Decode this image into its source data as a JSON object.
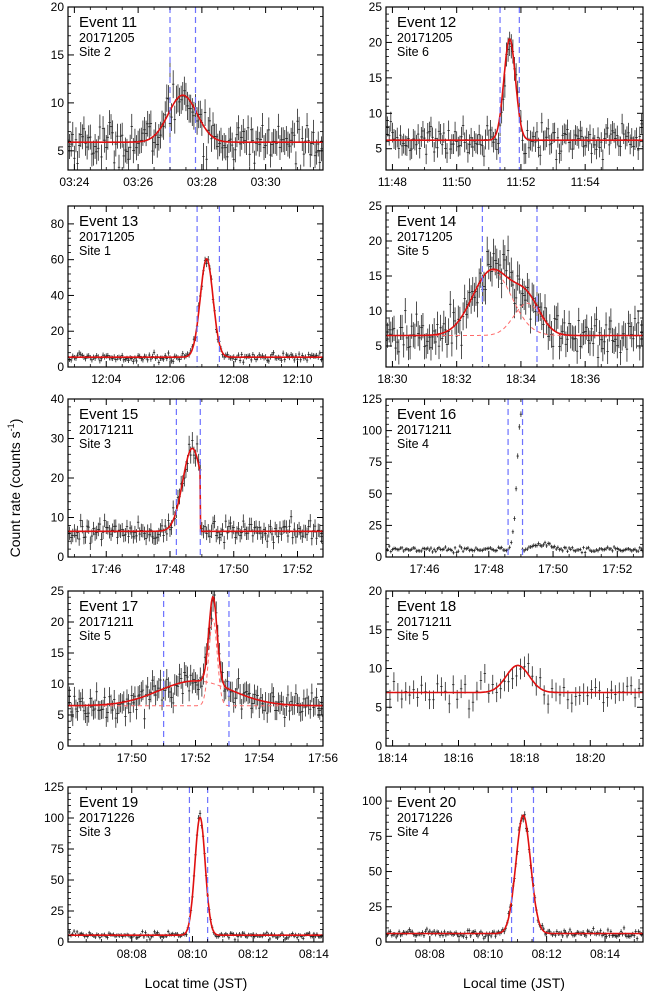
{
  "figure": {
    "ylabel_main": "Count rate (counts s",
    "ylabel_sup": "-1",
    "ylabel_close": ")",
    "xlabel_left": "Locat time (JST)",
    "xlabel_right": "Local time (JST)"
  },
  "chart_data": [
    {
      "type": "scatter",
      "event": "Event 11",
      "date": "20171205",
      "site": "Site 2",
      "ylim": [
        3,
        20
      ],
      "yticks": [
        5,
        10,
        15,
        20
      ],
      "xlim": [
        203.8,
        211.8
      ],
      "xticks": [
        204,
        206,
        208,
        210
      ],
      "xticklabels": [
        "03:24",
        "03:26",
        "03:28",
        "03:30"
      ],
      "baseline": 5.9,
      "peaks": [
        {
          "center": 207.4,
          "amp": 4.9,
          "sigma": 0.45
        }
      ],
      "noise": 1.3,
      "dx": 0.05,
      "vlines": [
        207.0,
        207.8
      ],
      "dashed_components": false,
      "spike": [
        207.0,
        13.5
      ]
    },
    {
      "type": "scatter",
      "event": "Event 12",
      "date": "20171205",
      "site": "Site 6",
      "ylim": [
        2,
        25
      ],
      "yticks": [
        5,
        10,
        15,
        20,
        25
      ],
      "xlim": [
        707.8,
        715.8
      ],
      "xticks": [
        708,
        710,
        712,
        714
      ],
      "xticklabels": [
        "11:48",
        "11:50",
        "11:52",
        "11:54"
      ],
      "baseline": 6.2,
      "peaks": [
        {
          "center": 711.65,
          "amp": 14.3,
          "sigma": 0.18
        }
      ],
      "noise": 1.4,
      "dx": 0.05,
      "vlines": [
        711.35,
        711.95
      ],
      "dashed_components": false
    },
    {
      "type": "scatter",
      "event": "Event 13",
      "date": "20171205",
      "site": "Site 1",
      "ylim": [
        0,
        90
      ],
      "yticks": [
        0,
        20,
        40,
        60,
        80
      ],
      "xlim": [
        722.8,
        730.8
      ],
      "xticks": [
        724,
        726,
        728,
        730
      ],
      "xticklabels": [
        "12:04",
        "12:06",
        "12:08",
        "12:10"
      ],
      "baseline": 5.5,
      "peaks": [
        {
          "center": 727.15,
          "amp": 55,
          "sigma": 0.2
        }
      ],
      "noise": 1.5,
      "dx": 0.05,
      "vlines": [
        726.85,
        727.55
      ],
      "dashed_components": false
    },
    {
      "type": "scatter",
      "event": "Event 14",
      "date": "20171205",
      "site": "Site 5",
      "ylim": [
        2,
        25
      ],
      "yticks": [
        5,
        10,
        15,
        20,
        25
      ],
      "xlim": [
        1109.8,
        1117.8
      ],
      "xticks": [
        1110,
        1112,
        1114,
        1116
      ],
      "xticklabels": [
        "18:30",
        "18:32",
        "18:34",
        "18:36"
      ],
      "baseline": 6.5,
      "peaks": [
        {
          "center": 1113.1,
          "amp": 9.3,
          "sigma": 0.6
        },
        {
          "center": 1114.2,
          "amp": 4.6,
          "sigma": 0.42
        }
      ],
      "noise": 1.8,
      "dx": 0.05,
      "vlines": [
        1112.8,
        1114.5
      ],
      "dashed_components": true
    },
    {
      "type": "scatter",
      "event": "Event 15",
      "date": "20171211",
      "site": "Site 3",
      "ylim": [
        0,
        40
      ],
      "yticks": [
        0,
        10,
        20,
        30,
        40
      ],
      "xlim": [
        1064.8,
        1072.8
      ],
      "xticks": [
        1066,
        1068,
        1070,
        1072
      ],
      "xticklabels": [
        "17:46",
        "17:48",
        "17:50",
        "17:52"
      ],
      "baseline": 6.5,
      "peaks": [
        {
          "center": 1068.7,
          "amp": 21,
          "sigma": 0.3
        }
      ],
      "cutoff": 1068.95,
      "noise": 1.7,
      "dx": 0.05,
      "vlines": [
        1068.2,
        1068.95
      ],
      "dashed_components": false
    },
    {
      "type": "scatter",
      "event": "Event 16",
      "date": "20171211",
      "site": "Site 4",
      "ylim": [
        0,
        125
      ],
      "yticks": [
        0,
        25,
        50,
        75,
        100,
        125
      ],
      "xlim": [
        1064.8,
        1072.8
      ],
      "xticks": [
        1066,
        1068,
        1070,
        1072
      ],
      "xticklabels": [
        "17:46",
        "17:48",
        "17:50",
        "17:52"
      ],
      "baseline": 6,
      "peaks": [
        {
          "center": 1069.0,
          "amp": 105,
          "sigma": 0.12
        }
      ],
      "cutoff": 1069.0,
      "bump": {
        "center": 1069.7,
        "amp": 5,
        "sigma": 0.2
      },
      "noise": 1.4,
      "dx": 0.05,
      "vlines": [
        1068.6,
        1069.05
      ],
      "dashed_components": false,
      "no_fit": true
    },
    {
      "type": "scatter",
      "event": "Event 17",
      "date": "20171211",
      "site": "Site 5",
      "ylim": [
        0,
        25
      ],
      "yticks": [
        0,
        5,
        10,
        15,
        20,
        25
      ],
      "xlim": [
        1068,
        1076
      ],
      "xticks": [
        1070,
        1072,
        1074,
        1076
      ],
      "xticklabels": [
        "17:50",
        "17:52",
        "17:54",
        "17:56"
      ],
      "baseline": 6.5,
      "peaks": [
        {
          "center": 1072.0,
          "amp": 4.0,
          "sigma": 1.15
        },
        {
          "center": 1072.55,
          "amp": 14,
          "sigma": 0.13
        }
      ],
      "noise": 1.5,
      "dx": 0.05,
      "vlines": [
        1071.0,
        1073.05
      ],
      "dashed_components": true
    },
    {
      "type": "scatter",
      "event": "Event 18",
      "date": "20171211",
      "site": "Site 5",
      "ylim": [
        0,
        20
      ],
      "yticks": [
        0,
        5,
        10,
        15,
        20
      ],
      "xlim": [
        1093.8,
        1101.6
      ],
      "xticks": [
        1094,
        1096,
        1098,
        1100
      ],
      "xticklabels": [
        "18:14",
        "18:16",
        "18:18",
        "18:20"
      ],
      "baseline": 6.9,
      "peaks": [
        {
          "center": 1097.8,
          "amp": 3.5,
          "sigma": 0.35
        }
      ],
      "noise": 1.2,
      "dx": 0.12,
      "vlines": [],
      "dashed_components": false
    },
    {
      "type": "scatter",
      "event": "Event 19",
      "date": "20171226",
      "site": "Site 3",
      "ylim": [
        0,
        125
      ],
      "yticks": [
        0,
        25,
        50,
        75,
        100,
        125
      ],
      "xlim": [
        485.9,
        494.3
      ],
      "xticks": [
        488,
        490,
        492,
        494
      ],
      "xticklabels": [
        "08:08",
        "08:10",
        "08:12",
        "08:14"
      ],
      "baseline": 5.5,
      "peaks": [
        {
          "center": 490.25,
          "amp": 95,
          "sigma": 0.17
        }
      ],
      "noise": 1.6,
      "dx": 0.05,
      "vlines": [
        489.9,
        490.5
      ],
      "dashed_components": false
    },
    {
      "type": "scatter",
      "event": "Event 20",
      "date": "20171226",
      "site": "Site 4",
      "ylim": [
        0,
        110
      ],
      "yticks": [
        0,
        25,
        50,
        75,
        100
      ],
      "xlim": [
        486.5,
        495.3
      ],
      "xticks": [
        488,
        490,
        492,
        494
      ],
      "xticklabels": [
        "08:08",
        "08:10",
        "08:12",
        "08:14"
      ],
      "baseline": 6,
      "peaks": [
        {
          "center": 491.2,
          "amp": 84,
          "sigma": 0.25
        }
      ],
      "noise": 1.6,
      "dx": 0.05,
      "vlines": [
        490.8,
        491.55
      ],
      "dashed_components": false
    }
  ]
}
